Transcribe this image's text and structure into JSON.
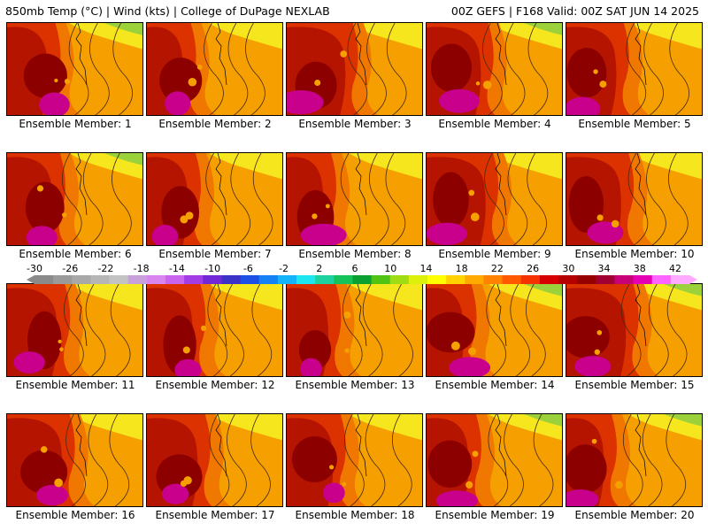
{
  "header": {
    "left": "850mb Temp (°C) | Wind (kts) | College of DuPage NEXLAB",
    "right": "00Z GEFS | F168 Valid: 00Z SAT JUN 14 2025"
  },
  "caption_prefix": "Ensemble Member: ",
  "members": [
    "1",
    "2",
    "3",
    "4",
    "5",
    "6",
    "7",
    "8",
    "9",
    "10",
    "11",
    "12",
    "13",
    "14",
    "15",
    "16",
    "17",
    "18",
    "19",
    "20"
  ],
  "legend": {
    "ticks": [
      "-30",
      "-26",
      "-22",
      "-18",
      "-14",
      "-10",
      "-6",
      "-2",
      "2",
      "6",
      "10",
      "14",
      "18",
      "22",
      "26",
      "30",
      "34",
      "38",
      "42"
    ],
    "colors": [
      "#8a8a8a",
      "#9a9a9a",
      "#a8a8a8",
      "#b6b6b6",
      "#c3c3c3",
      "#c7a0dc",
      "#d985f0",
      "#c864ee",
      "#a23ce6",
      "#7228d6",
      "#3c32c8",
      "#1e50e6",
      "#1482f5",
      "#14b4fa",
      "#1ee6f0",
      "#1ed2a0",
      "#14c35a",
      "#0aa032",
      "#50c314",
      "#a0dc14",
      "#dcf00a",
      "#ffff00",
      "#ffd200",
      "#ffaa00",
      "#ff8200",
      "#ff5a00",
      "#f53200",
      "#d70000",
      "#b40000",
      "#960000",
      "#a00032",
      "#c80078",
      "#e600b4",
      "#ff64ff",
      "#ffaaff"
    ]
  },
  "field_colors": {
    "green": "#9bd23c",
    "yellow": "#f5e61e",
    "orange": "#f5a000",
    "dark_orange": "#f07800",
    "red": "#dc3200",
    "dark_red": "#b41400",
    "maroon": "#8c0000",
    "magenta": "#c8008c"
  }
}
